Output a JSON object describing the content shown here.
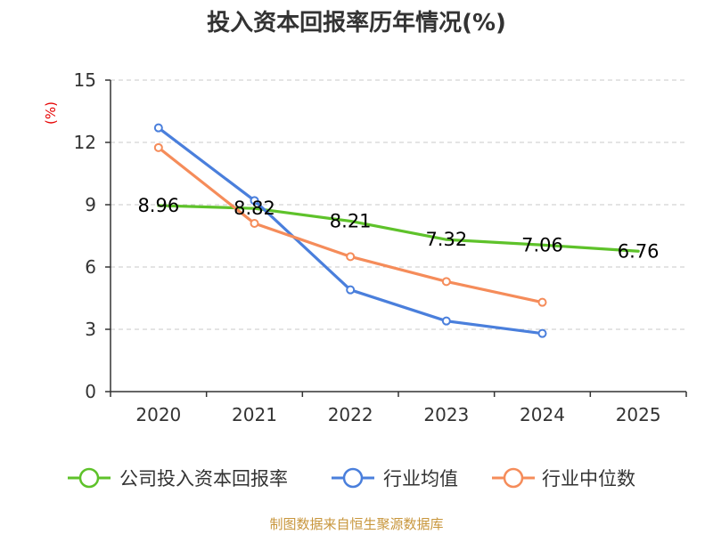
{
  "chart_data": {
    "type": "line",
    "title": "投入资本回报率历年情况(%)",
    "ylabel": "(%)",
    "xlabel": "",
    "categories": [
      "2020",
      "2021",
      "2022",
      "2023",
      "2024",
      "2025"
    ],
    "ylim": [
      0,
      15
    ],
    "yticks": [
      0,
      3,
      6,
      9,
      12,
      15
    ],
    "grid": true,
    "legend_position": "bottom",
    "series": [
      {
        "name": "公司投入资本回报率",
        "color": "#5ec22a",
        "values": [
          8.96,
          8.82,
          8.21,
          7.32,
          7.06,
          6.76
        ],
        "labels": [
          "8.96",
          "8.82",
          "8.21",
          "7.32",
          "7.06",
          "6.76"
        ]
      },
      {
        "name": "行业均值",
        "color": "#4a7fdc",
        "values": [
          12.7,
          9.2,
          4.9,
          3.4,
          2.8,
          null
        ]
      },
      {
        "name": "行业中位数",
        "color": "#f58c5a",
        "values": [
          11.75,
          8.1,
          6.5,
          5.3,
          4.3,
          null
        ]
      }
    ],
    "source": "制图数据来自恒生聚源数据库"
  }
}
